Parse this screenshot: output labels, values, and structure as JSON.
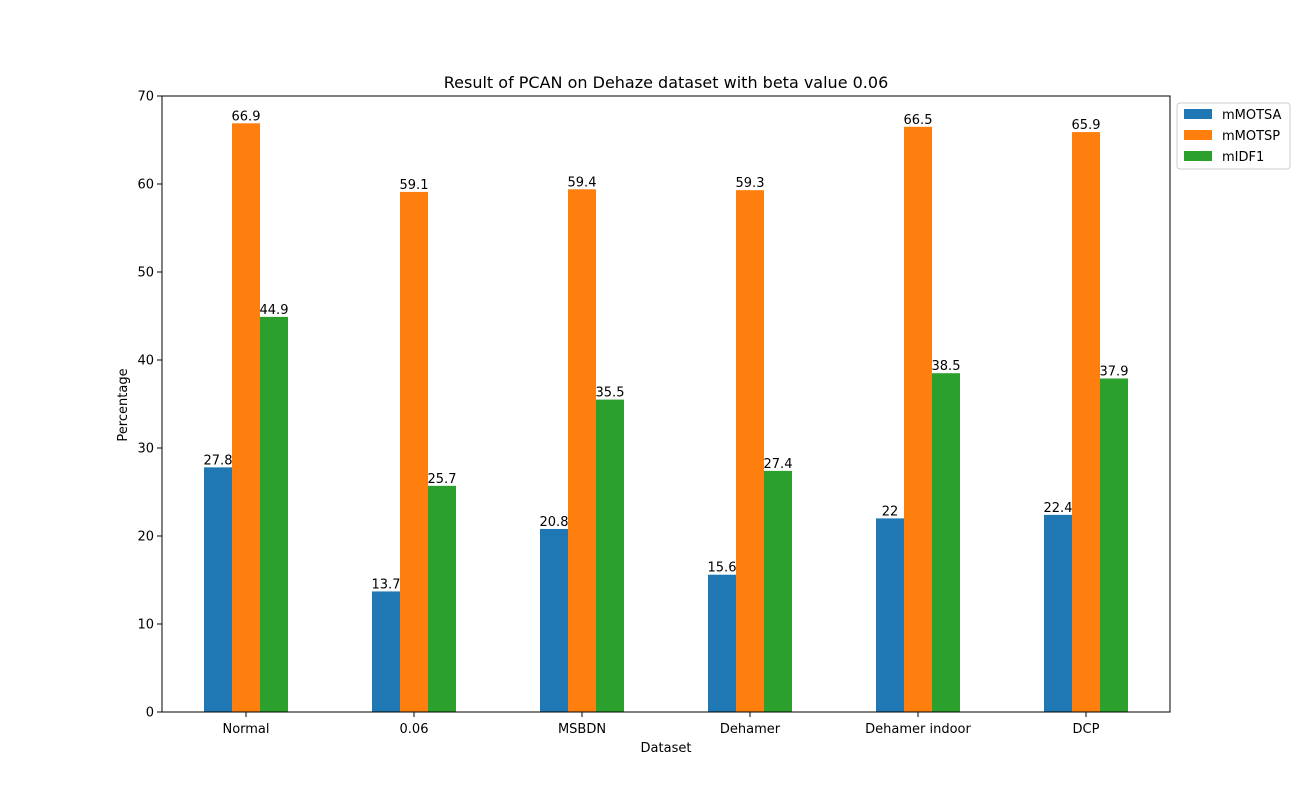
{
  "chart_data": {
    "type": "bar",
    "title": "Result of PCAN on Dehaze dataset with beta value 0.06",
    "xlabel": "Dataset",
    "ylabel": "Percentage",
    "ylim": [
      0,
      70
    ],
    "yticks": [
      0,
      10,
      20,
      30,
      40,
      50,
      60,
      70
    ],
    "categories": [
      "Normal",
      "0.06",
      "MSBDN",
      "Dehamer",
      "Dehamer indoor",
      "DCP"
    ],
    "series": [
      {
        "name": "mMOTSA",
        "color": "#1f77b4",
        "values": [
          27.8,
          13.7,
          20.8,
          15.6,
          22,
          22.4
        ]
      },
      {
        "name": "mMOTSP",
        "color": "#ff7f0e",
        "values": [
          66.9,
          59.1,
          59.4,
          59.3,
          66.5,
          65.9
        ]
      },
      {
        "name": "mIDF1",
        "color": "#2ca02c",
        "values": [
          44.9,
          25.7,
          35.5,
          27.4,
          38.5,
          37.9
        ]
      }
    ],
    "grid": false,
    "legend_position": "outside-top-right",
    "data_labels": true
  }
}
